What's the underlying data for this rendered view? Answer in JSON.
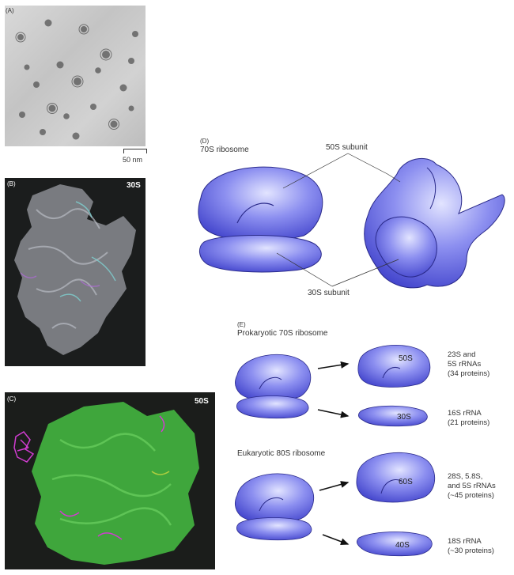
{
  "panel_a": {
    "letter": "(A)",
    "scale_label": "50 nm"
  },
  "panel_b": {
    "letter": "(B)",
    "title": "30S"
  },
  "panel_c": {
    "letter": "(C)",
    "title": "50S"
  },
  "panel_d": {
    "letter": "(D)",
    "title": "70S ribosome",
    "label_large": "50S subunit",
    "label_small": "30S subunit"
  },
  "panel_e": {
    "letter": "(E)",
    "prokaryote_title": "Prokaryotic 70S ribosome",
    "eukaryote_title": "Eukaryotic 80S ribosome",
    "pro_large_unit": "50S",
    "pro_small_unit": "30S",
    "euk_large_unit": "60S",
    "euk_small_unit": "40S",
    "pro_large_desc": [
      "23S and",
      "5S rRNAs",
      "(34 proteins)"
    ],
    "pro_small_desc": [
      "16S rRNA",
      "(21 proteins)"
    ],
    "euk_large_desc": [
      "28S, 5.8S,",
      "and 5S rRNAs",
      "(~45 proteins)"
    ],
    "euk_small_desc": [
      "18S rRNA",
      "(~30 proteins)"
    ]
  },
  "colors": {
    "ribosome_blue": "#5a5ee6",
    "ribosome_light": "#c8ccff",
    "ribosome_dark": "#2a2aa8",
    "rna_green": "#3fa63c",
    "protein_magenta": "#d03cd0"
  }
}
